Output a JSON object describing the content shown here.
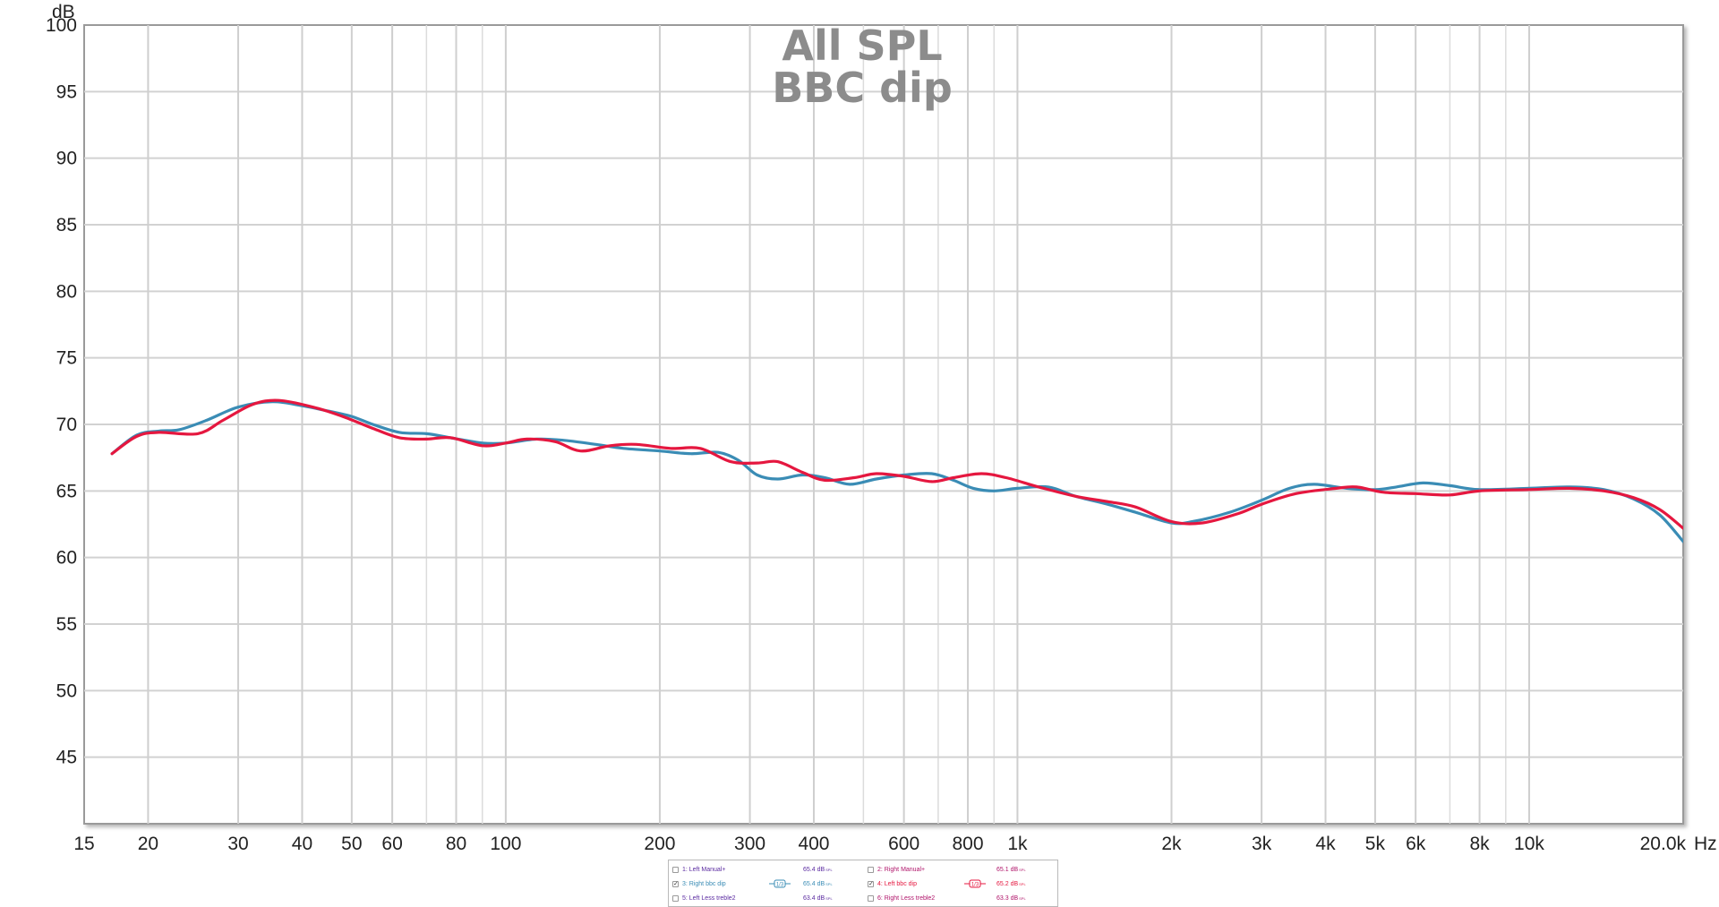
{
  "chart_data": {
    "type": "line",
    "title_lines": [
      "All SPL",
      "BBC dip"
    ],
    "ylabel": "dB",
    "xunit": "Hz",
    "xscale": "log",
    "xlim": [
      15,
      20000
    ],
    "ylim": [
      40,
      100
    ],
    "yticks": [
      45,
      50,
      55,
      60,
      65,
      70,
      75,
      80,
      85,
      90,
      95,
      100
    ],
    "xticks": [
      {
        "v": 15,
        "label": "15"
      },
      {
        "v": 20,
        "label": "20"
      },
      {
        "v": 30,
        "label": "30"
      },
      {
        "v": 40,
        "label": "40"
      },
      {
        "v": 50,
        "label": "50"
      },
      {
        "v": 60,
        "label": "60"
      },
      {
        "v": 80,
        "label": "80"
      },
      {
        "v": 100,
        "label": "100"
      },
      {
        "v": 200,
        "label": "200"
      },
      {
        "v": 300,
        "label": "300"
      },
      {
        "v": 400,
        "label": "400"
      },
      {
        "v": 600,
        "label": "600"
      },
      {
        "v": 800,
        "label": "800"
      },
      {
        "v": 1000,
        "label": "1k"
      },
      {
        "v": 2000,
        "label": "2k"
      },
      {
        "v": 3000,
        "label": "3k"
      },
      {
        "v": 4000,
        "label": "4k"
      },
      {
        "v": 5000,
        "label": "5k"
      },
      {
        "v": 6000,
        "label": "6k"
      },
      {
        "v": 8000,
        "label": "8k"
      },
      {
        "v": 10000,
        "label": "10k"
      },
      {
        "v": 20000,
        "label": "20.0k"
      }
    ],
    "grid": true,
    "series": [
      {
        "name": "3: Right bbc dip",
        "color": "#3a8cb5",
        "points": [
          [
            17,
            67.8
          ],
          [
            19,
            69.2
          ],
          [
            21,
            69.5
          ],
          [
            23,
            69.6
          ],
          [
            26,
            70.3
          ],
          [
            30,
            71.3
          ],
          [
            35,
            71.7
          ],
          [
            40,
            71.4
          ],
          [
            45,
            71.0
          ],
          [
            50,
            70.6
          ],
          [
            55,
            70.0
          ],
          [
            62,
            69.4
          ],
          [
            70,
            69.3
          ],
          [
            78,
            69.0
          ],
          [
            90,
            68.6
          ],
          [
            100,
            68.6
          ],
          [
            115,
            68.9
          ],
          [
            130,
            68.8
          ],
          [
            150,
            68.5
          ],
          [
            170,
            68.2
          ],
          [
            200,
            68.0
          ],
          [
            230,
            67.8
          ],
          [
            260,
            67.9
          ],
          [
            285,
            67.3
          ],
          [
            310,
            66.2
          ],
          [
            340,
            65.9
          ],
          [
            380,
            66.2
          ],
          [
            420,
            66.0
          ],
          [
            470,
            65.5
          ],
          [
            530,
            65.9
          ],
          [
            600,
            66.2
          ],
          [
            680,
            66.3
          ],
          [
            750,
            65.8
          ],
          [
            820,
            65.2
          ],
          [
            900,
            65.0
          ],
          [
            1000,
            65.2
          ],
          [
            1150,
            65.3
          ],
          [
            1300,
            64.6
          ],
          [
            1500,
            64.0
          ],
          [
            1700,
            63.4
          ],
          [
            2000,
            62.6
          ],
          [
            2200,
            62.7
          ],
          [
            2600,
            63.4
          ],
          [
            3000,
            64.3
          ],
          [
            3400,
            65.2
          ],
          [
            3800,
            65.5
          ],
          [
            4400,
            65.2
          ],
          [
            5000,
            65.1
          ],
          [
            5500,
            65.3
          ],
          [
            6200,
            65.6
          ],
          [
            7000,
            65.4
          ],
          [
            8000,
            65.1
          ],
          [
            10000,
            65.2
          ],
          [
            12000,
            65.3
          ],
          [
            14000,
            65.1
          ],
          [
            16000,
            64.4
          ],
          [
            18000,
            63.2
          ],
          [
            20000,
            61.2
          ]
        ]
      },
      {
        "name": "4: Left bbc dip",
        "color": "#e5173f",
        "points": [
          [
            17,
            67.8
          ],
          [
            19,
            69.1
          ],
          [
            21,
            69.4
          ],
          [
            25,
            69.3
          ],
          [
            28,
            70.3
          ],
          [
            32,
            71.5
          ],
          [
            36,
            71.8
          ],
          [
            42,
            71.3
          ],
          [
            48,
            70.6
          ],
          [
            55,
            69.7
          ],
          [
            62,
            69.0
          ],
          [
            70,
            68.9
          ],
          [
            78,
            69.0
          ],
          [
            90,
            68.4
          ],
          [
            100,
            68.6
          ],
          [
            110,
            68.9
          ],
          [
            125,
            68.7
          ],
          [
            140,
            68.0
          ],
          [
            160,
            68.4
          ],
          [
            180,
            68.5
          ],
          [
            210,
            68.2
          ],
          [
            240,
            68.2
          ],
          [
            275,
            67.2
          ],
          [
            310,
            67.1
          ],
          [
            340,
            67.2
          ],
          [
            380,
            66.4
          ],
          [
            420,
            65.8
          ],
          [
            480,
            66.0
          ],
          [
            530,
            66.3
          ],
          [
            600,
            66.1
          ],
          [
            680,
            65.7
          ],
          [
            750,
            66.0
          ],
          [
            850,
            66.3
          ],
          [
            950,
            66.0
          ],
          [
            1100,
            65.3
          ],
          [
            1300,
            64.6
          ],
          [
            1500,
            64.2
          ],
          [
            1700,
            63.8
          ],
          [
            2000,
            62.7
          ],
          [
            2300,
            62.6
          ],
          [
            2700,
            63.3
          ],
          [
            3000,
            64.0
          ],
          [
            3500,
            64.8
          ],
          [
            4200,
            65.2
          ],
          [
            4600,
            65.3
          ],
          [
            5200,
            64.9
          ],
          [
            6000,
            64.8
          ],
          [
            7000,
            64.7
          ],
          [
            8000,
            65.0
          ],
          [
            10000,
            65.1
          ],
          [
            12000,
            65.2
          ],
          [
            14000,
            65.0
          ],
          [
            16000,
            64.5
          ],
          [
            18000,
            63.6
          ],
          [
            20000,
            62.2
          ]
        ]
      }
    ]
  },
  "legend": {
    "rows": [
      [
        {
          "checked": false,
          "label": "1: Left Manual+",
          "value": "65.4 dB",
          "unit": "SPL",
          "color": "#5a2aa0",
          "smoothing": false
        },
        {
          "checked": false,
          "label": "2: Right Manual+",
          "value": "65.1 dB",
          "unit": "SPL",
          "color": "#b0146a",
          "smoothing": false
        }
      ],
      [
        {
          "checked": true,
          "label": "3: Right bbc dip",
          "value": "65.4 dB",
          "unit": "SPL",
          "color": "#3a8cb5",
          "smoothing": true,
          "smoothing_label": "1/3"
        },
        {
          "checked": true,
          "label": "4: Left bbc dip",
          "value": "65.2 dB",
          "unit": "SPL",
          "color": "#e5173f",
          "smoothing": true,
          "smoothing_label": "1/3"
        }
      ],
      [
        {
          "checked": false,
          "label": "5: Left Less treble2",
          "value": "63.4 dB",
          "unit": "SPL",
          "color": "#5a2aa0",
          "smoothing": false
        },
        {
          "checked": false,
          "label": "6: Right Less treble2",
          "value": "63.3 dB",
          "unit": "SPL",
          "color": "#b0146a",
          "smoothing": false
        }
      ]
    ]
  }
}
